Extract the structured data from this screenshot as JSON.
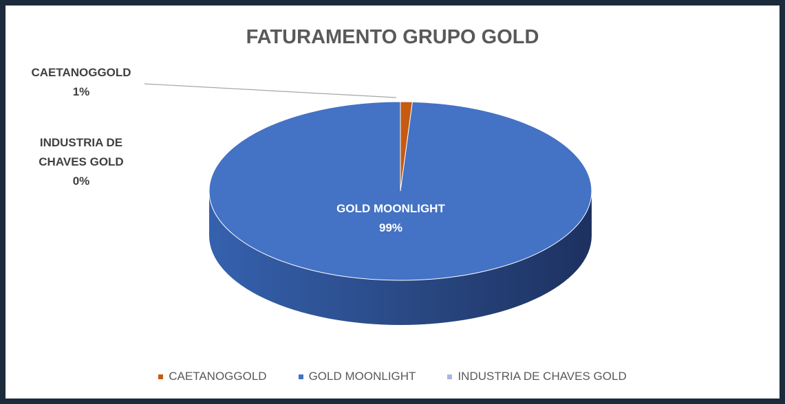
{
  "chart_data": {
    "type": "pie",
    "title": "FATURAMENTO  GRUPO GOLD",
    "categories": [
      "CAETANOGGOLD",
      "GOLD MOONLIGHT",
      "INDUSTRIA DE CHAVES GOLD"
    ],
    "values": [
      1,
      99,
      0
    ],
    "value_labels": [
      "1%",
      "99%",
      "0%"
    ],
    "colors": [
      "#c55a11",
      "#4472c4",
      "#a5b8e0"
    ],
    "legend": "bottom"
  }
}
